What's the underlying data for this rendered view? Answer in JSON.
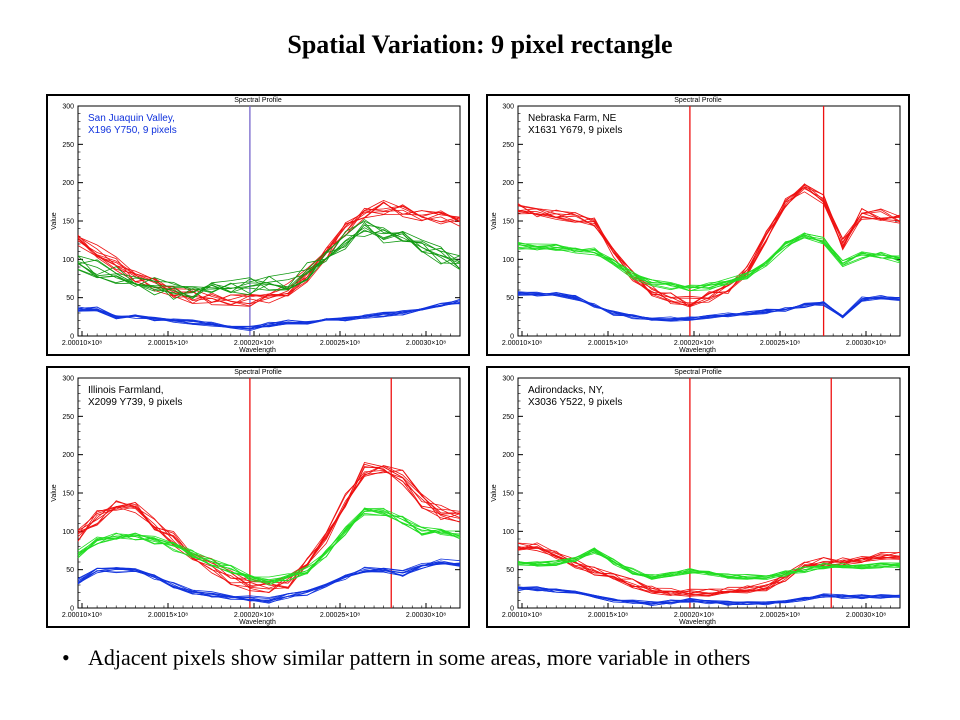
{
  "slide": {
    "title": "Spatial Variation: 9 pixel rectangle",
    "bullet_symbol": "•",
    "bullet": "Adjacent pixels show similar pattern in some areas, more variable in others"
  },
  "colors": {
    "red": "#ee1111",
    "green": "#119911",
    "green_light": "#22dd22",
    "blue": "#1133dd",
    "purple_marker": "#7766cc"
  },
  "chart_data": [
    {
      "type": "line",
      "window_title": "Spectral Profile",
      "annotation": [
        "San Juaquin Valley,",
        "X196 Y750,   9 pixels"
      ],
      "annotation_color": "#1133dd",
      "ylabel": "Value",
      "xlabel": "Wavelength",
      "yticks": [
        "0",
        "50",
        "100",
        "150",
        "200",
        "250",
        "300"
      ],
      "xticks": [
        "2.00010×10⁸",
        "2.00015×10⁸",
        "2.00020×10⁸",
        "2.00025×10⁸",
        "2.00030×10⁸"
      ],
      "ylim": [
        0,
        300
      ],
      "xlim": [
        0,
        1
      ],
      "markers": [
        0.45
      ],
      "marker_color": "#7766cc",
      "series": [
        {
          "color": "#ee1111",
          "count": 9,
          "spread": 10,
          "x": [
            0,
            0.05,
            0.1,
            0.15,
            0.2,
            0.25,
            0.3,
            0.35,
            0.4,
            0.45,
            0.5,
            0.55,
            0.6,
            0.65,
            0.7,
            0.75,
            0.8,
            0.85,
            0.9,
            0.95,
            1
          ],
          "values": [
            125,
            112,
            95,
            80,
            68,
            58,
            52,
            50,
            50,
            48,
            50,
            62,
            80,
            110,
            140,
            160,
            168,
            165,
            160,
            155,
            150
          ]
        },
        {
          "color": "#119911",
          "count": 9,
          "spread": 12,
          "x": [
            0,
            0.05,
            0.1,
            0.15,
            0.2,
            0.25,
            0.3,
            0.35,
            0.4,
            0.45,
            0.5,
            0.55,
            0.6,
            0.65,
            0.7,
            0.75,
            0.8,
            0.85,
            0.9,
            0.95,
            1
          ],
          "values": [
            95,
            88,
            80,
            72,
            65,
            58,
            55,
            58,
            62,
            65,
            68,
            72,
            85,
            105,
            125,
            140,
            132,
            125,
            115,
            105,
            95
          ]
        },
        {
          "color": "#1133dd",
          "count": 9,
          "spread": 3,
          "x": [
            0,
            0.05,
            0.1,
            0.15,
            0.2,
            0.25,
            0.3,
            0.35,
            0.4,
            0.45,
            0.5,
            0.55,
            0.6,
            0.65,
            0.7,
            0.75,
            0.8,
            0.85,
            0.9,
            0.95,
            1
          ],
          "values": [
            35,
            35,
            25,
            25,
            22,
            20,
            18,
            15,
            12,
            10,
            15,
            18,
            18,
            20,
            22,
            25,
            28,
            30,
            35,
            40,
            45
          ]
        }
      ]
    },
    {
      "type": "line",
      "window_title": "Spectral Profile",
      "annotation": [
        "Nebraska Farm, NE",
        "X1631 Y679,   9 pixels"
      ],
      "annotation_color": "#000000",
      "ylabel": "Value",
      "xlabel": "Wavelength",
      "yticks": [
        "0",
        "50",
        "100",
        "150",
        "200",
        "250",
        "300"
      ],
      "xticks": [
        "2.00010×10⁸",
        "2.00015×10⁸",
        "2.00020×10⁸",
        "2.00025×10⁸",
        "2.00030×10⁸"
      ],
      "ylim": [
        0,
        300
      ],
      "xlim": [
        0,
        1
      ],
      "markers": [
        0.45,
        0.8
      ],
      "marker_color": "#ee1111",
      "series": [
        {
          "color": "#ee1111",
          "count": 9,
          "spread": 8,
          "x": [
            0,
            0.05,
            0.1,
            0.15,
            0.2,
            0.25,
            0.3,
            0.35,
            0.4,
            0.45,
            0.5,
            0.55,
            0.6,
            0.65,
            0.7,
            0.75,
            0.8,
            0.85,
            0.9,
            0.95,
            1
          ],
          "values": [
            165,
            162,
            158,
            155,
            150,
            110,
            80,
            60,
            50,
            45,
            50,
            62,
            85,
            130,
            175,
            195,
            180,
            120,
            160,
            158,
            150
          ]
        },
        {
          "color": "#22dd22",
          "count": 9,
          "spread": 5,
          "x": [
            0,
            0.05,
            0.1,
            0.15,
            0.2,
            0.25,
            0.3,
            0.35,
            0.4,
            0.45,
            0.5,
            0.55,
            0.6,
            0.65,
            0.7,
            0.75,
            0.8,
            0.85,
            0.9,
            0.95,
            1
          ],
          "values": [
            118,
            115,
            115,
            112,
            110,
            95,
            80,
            70,
            65,
            62,
            65,
            70,
            78,
            95,
            118,
            130,
            125,
            95,
            105,
            105,
            100
          ]
        },
        {
          "color": "#1133dd",
          "count": 9,
          "spread": 3,
          "x": [
            0,
            0.05,
            0.1,
            0.15,
            0.2,
            0.25,
            0.3,
            0.35,
            0.4,
            0.45,
            0.5,
            0.55,
            0.6,
            0.65,
            0.7,
            0.75,
            0.8,
            0.85,
            0.9,
            0.95,
            1
          ],
          "values": [
            55,
            55,
            55,
            50,
            40,
            30,
            25,
            22,
            22,
            22,
            25,
            28,
            30,
            32,
            35,
            40,
            42,
            25,
            48,
            50,
            48
          ]
        }
      ]
    },
    {
      "type": "line",
      "window_title": "Spectral Profile",
      "annotation": [
        "Illinois Farmland,",
        "X2099 Y739,   9 pixels"
      ],
      "annotation_color": "#000000",
      "ylabel": "Value",
      "xlabel": "Wavelength",
      "yticks": [
        "0",
        "50",
        "100",
        "150",
        "200",
        "250",
        "300"
      ],
      "xticks": [
        "2.00010×10⁸",
        "2.00015×10⁸",
        "2.00020×10⁸",
        "2.00025×10⁸",
        "2.00030×10⁸"
      ],
      "ylim": [
        0,
        300
      ],
      "xlim": [
        0,
        1
      ],
      "markers": [
        0.45,
        0.82
      ],
      "marker_color": "#ee1111",
      "series": [
        {
          "color": "#ee1111",
          "count": 9,
          "spread": 10,
          "x": [
            0,
            0.05,
            0.1,
            0.15,
            0.2,
            0.25,
            0.3,
            0.35,
            0.4,
            0.45,
            0.5,
            0.55,
            0.6,
            0.65,
            0.7,
            0.75,
            0.8,
            0.85,
            0.9,
            0.95,
            1
          ],
          "values": [
            95,
            118,
            130,
            130,
            110,
            90,
            70,
            55,
            40,
            30,
            28,
            35,
            55,
            90,
            140,
            180,
            185,
            170,
            140,
            125,
            120
          ]
        },
        {
          "color": "#22dd22",
          "count": 9,
          "spread": 6,
          "x": [
            0,
            0.05,
            0.1,
            0.15,
            0.2,
            0.25,
            0.3,
            0.35,
            0.4,
            0.45,
            0.5,
            0.55,
            0.6,
            0.65,
            0.7,
            0.75,
            0.8,
            0.85,
            0.9,
            0.95,
            1
          ],
          "values": [
            70,
            88,
            95,
            92,
            88,
            80,
            70,
            60,
            50,
            40,
            35,
            40,
            50,
            70,
            100,
            125,
            125,
            115,
            100,
            100,
            95
          ]
        },
        {
          "color": "#1133dd",
          "count": 9,
          "spread": 4,
          "x": [
            0,
            0.05,
            0.1,
            0.15,
            0.2,
            0.25,
            0.3,
            0.35,
            0.4,
            0.45,
            0.5,
            0.55,
            0.6,
            0.65,
            0.7,
            0.75,
            0.8,
            0.85,
            0.9,
            0.95,
            1
          ],
          "values": [
            35,
            48,
            50,
            50,
            40,
            30,
            22,
            18,
            15,
            12,
            10,
            15,
            20,
            30,
            40,
            50,
            50,
            45,
            55,
            60,
            58
          ]
        }
      ]
    },
    {
      "type": "line",
      "window_title": "Spectral Profile",
      "annotation": [
        "Adirondacks, NY,",
        "X3036 Y522,   9 pixels"
      ],
      "annotation_color": "#000000",
      "ylabel": "Value",
      "xlabel": "Wavelength",
      "yticks": [
        "0",
        "50",
        "100",
        "150",
        "200",
        "250",
        "300"
      ],
      "xticks": [
        "2.00010×10⁸",
        "2.00015×10⁸",
        "2.00020×10⁸",
        "2.00025×10⁸",
        "2.00030×10⁸"
      ],
      "ylim": [
        0,
        300
      ],
      "xlim": [
        0,
        1
      ],
      "markers": [
        0.45,
        0.82
      ],
      "marker_color": "#ee1111",
      "series": [
        {
          "color": "#ee1111",
          "count": 9,
          "spread": 6,
          "x": [
            0,
            0.05,
            0.1,
            0.15,
            0.2,
            0.25,
            0.3,
            0.35,
            0.4,
            0.45,
            0.5,
            0.55,
            0.6,
            0.65,
            0.7,
            0.75,
            0.8,
            0.85,
            0.9,
            0.95,
            1
          ],
          "values": [
            80,
            80,
            70,
            58,
            48,
            40,
            32,
            25,
            22,
            20,
            20,
            22,
            25,
            28,
            40,
            55,
            60,
            62,
            65,
            68,
            68
          ]
        },
        {
          "color": "#22dd22",
          "count": 9,
          "spread": 4,
          "x": [
            0,
            0.05,
            0.1,
            0.15,
            0.2,
            0.25,
            0.3,
            0.35,
            0.4,
            0.45,
            0.5,
            0.55,
            0.6,
            0.65,
            0.7,
            0.75,
            0.8,
            0.85,
            0.9,
            0.95,
            1
          ],
          "values": [
            58,
            58,
            58,
            62,
            75,
            60,
            48,
            40,
            45,
            48,
            45,
            42,
            40,
            38,
            45,
            50,
            55,
            55,
            55,
            55,
            55
          ]
        },
        {
          "color": "#1133dd",
          "count": 9,
          "spread": 3,
          "x": [
            0,
            0.05,
            0.1,
            0.15,
            0.2,
            0.25,
            0.3,
            0.35,
            0.4,
            0.45,
            0.5,
            0.55,
            0.6,
            0.65,
            0.7,
            0.75,
            0.8,
            0.85,
            0.9,
            0.95,
            1
          ],
          "values": [
            25,
            25,
            22,
            20,
            15,
            10,
            8,
            6,
            8,
            10,
            8,
            6,
            6,
            6,
            8,
            12,
            16,
            15,
            15,
            15,
            15
          ]
        }
      ]
    }
  ]
}
